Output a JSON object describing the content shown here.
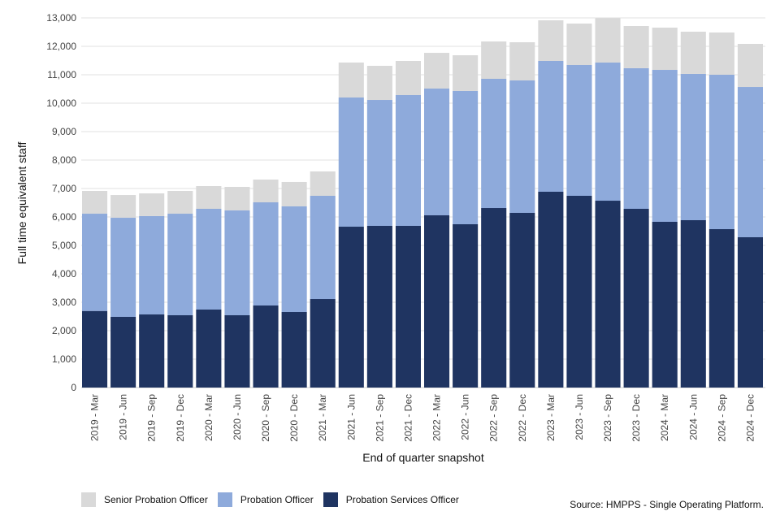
{
  "chart_data": {
    "type": "bar",
    "stacked": true,
    "title": "",
    "xlabel": "End of quarter snapshot",
    "ylabel": "Full time equivalent staff",
    "ylim": [
      0,
      13000
    ],
    "yticks": [
      0,
      1000,
      2000,
      3000,
      4000,
      5000,
      6000,
      7000,
      8000,
      9000,
      10000,
      11000,
      12000,
      13000
    ],
    "ytick_labels": [
      "0",
      "1,000",
      "2,000",
      "3,000",
      "4,000",
      "5,000",
      "6,000",
      "7,000",
      "8,000",
      "9,000",
      "10,000",
      "11,000",
      "12,000",
      "13,000"
    ],
    "grid": true,
    "legend_position": "bottom-left",
    "categories": [
      "2019 - Mar",
      "2019 - Jun",
      "2019 - Sep",
      "2019 - Dec",
      "2020 - Mar",
      "2020 - Jun",
      "2020 - Sep",
      "2020 - Dec",
      "2021 - Mar",
      "2021 - Jun",
      "2021 - Sep",
      "2021 - Dec",
      "2022 - Mar",
      "2022 - Jun",
      "2022 - Sep",
      "2022 - Dec",
      "2023 - Mar",
      "2023 - Jun",
      "2023 - Sep",
      "2023 - Dec",
      "2024 - Mar",
      "2024 - Jun",
      "2024 - Sep",
      "2024 - Dec"
    ],
    "series": [
      {
        "name": "Probation Services Officer",
        "color": "#1f3461",
        "values": [
          2694,
          2486,
          2571,
          2543,
          2743,
          2543,
          2886,
          2657,
          3114,
          5657,
          5686,
          5686,
          6057,
          5743,
          6314,
          6143,
          6886,
          6743,
          6571,
          6286,
          5829,
          5886,
          5571,
          5286
        ]
      },
      {
        "name": "Probation Officer",
        "color": "#8eaadb",
        "values": [
          3420,
          3485,
          3458,
          3571,
          3543,
          3686,
          3628,
          3714,
          3629,
          4543,
          4428,
          4600,
          4457,
          4686,
          4543,
          4657,
          4600,
          4600,
          4858,
          4943,
          5342,
          5143,
          5429,
          5285
        ]
      },
      {
        "name": "Senior Probation Officer",
        "color": "#d9d9d9",
        "values": [
          800,
          800,
          800,
          800,
          800,
          828,
          800,
          858,
          857,
          1229,
          1200,
          1200,
          1257,
          1257,
          1314,
          1343,
          1428,
          1457,
          1561,
          1485,
          1486,
          1485,
          1486,
          1515
        ]
      }
    ],
    "legend": [
      "Senior Probation Officer",
      "Probation Officer",
      "Probation Services Officer"
    ],
    "source": "Source: HMPPS - Single Operating Platform."
  },
  "legend_items": [
    {
      "label": "Senior Probation Officer",
      "color": "#d9d9d9"
    },
    {
      "label": "Probation Officer",
      "color": "#8eaadb"
    },
    {
      "label": "Probation Services Officer",
      "color": "#1f3461"
    }
  ],
  "source_text": "Source: HMPPS - Single Operating Platform."
}
